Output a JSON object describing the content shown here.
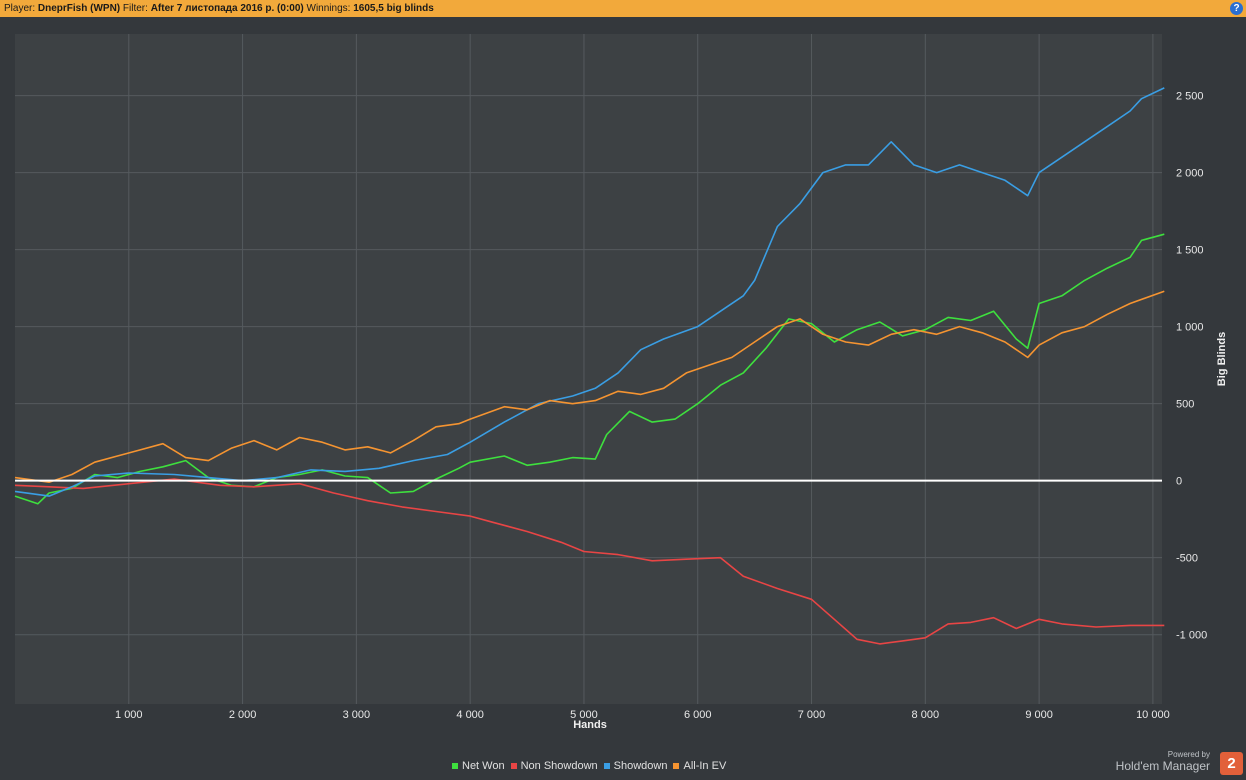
{
  "header": {
    "player_label": "Player:",
    "player_value": "DneprFish (WPN)",
    "filter_label": "Filter:",
    "filter_value": "After 7 листопада 2016 р. (0:00)",
    "winnings_label": "Winnings:",
    "winnings_value": "1605,5 big blinds",
    "help_icon": "question-mark-icon"
  },
  "branding": {
    "powered_by": "Powered by",
    "name": "Hold'em Manager",
    "badge": "2"
  },
  "chart_data": {
    "type": "line",
    "xlabel": "Hands",
    "ylabel": "Big Blinds",
    "xlim": [
      0,
      10080
    ],
    "ylim": [
      -1450,
      2900
    ],
    "grid": true,
    "legend_position": "bottom-center",
    "x_ticks": [
      1000,
      2000,
      3000,
      4000,
      5000,
      6000,
      7000,
      8000,
      9000,
      10000
    ],
    "x_tick_labels": [
      "1 000",
      "2 000",
      "3 000",
      "4 000",
      "5 000",
      "6 000",
      "7 000",
      "8 000",
      "9 000",
      "10 000"
    ],
    "y_ticks": [
      2500,
      2000,
      1500,
      1000,
      500,
      0,
      -500,
      -1000
    ],
    "y_tick_labels": [
      "2 500",
      "2 000",
      "1 500",
      "1 000",
      "500",
      "0",
      "-500",
      "-1 000"
    ],
    "zero_line_color": "#ffffff",
    "series": [
      {
        "name": "Net Won",
        "color": "#3ee03e",
        "x": [
          0,
          200,
          300,
          500,
          700,
          900,
          1100,
          1300,
          1500,
          1700,
          1900,
          2100,
          2300,
          2500,
          2700,
          2900,
          3100,
          3300,
          3500,
          3700,
          3900,
          4000,
          4300,
          4500,
          4700,
          4900,
          5100,
          5200,
          5400,
          5600,
          5800,
          6000,
          6200,
          6400,
          6600,
          6800,
          7000,
          7200,
          7400,
          7600,
          7800,
          8000,
          8200,
          8400,
          8600,
          8800,
          8900,
          9000,
          9200,
          9400,
          9600,
          9800,
          9900,
          10100
        ],
        "y": [
          -100,
          -150,
          -80,
          -50,
          40,
          20,
          60,
          90,
          130,
          20,
          -30,
          -40,
          20,
          40,
          70,
          30,
          20,
          -80,
          -70,
          10,
          80,
          120,
          160,
          100,
          120,
          150,
          140,
          300,
          450,
          380,
          400,
          500,
          620,
          700,
          860,
          1050,
          1020,
          900,
          980,
          1030,
          940,
          980,
          1060,
          1040,
          1100,
          920,
          860,
          1150,
          1200,
          1300,
          1380,
          1450,
          1560,
          1600
        ]
      },
      {
        "name": "Non Showdown",
        "color": "#e84545",
        "x": [
          0,
          300,
          600,
          1000,
          1400,
          1800,
          2100,
          2500,
          2800,
          3100,
          3400,
          3700,
          4000,
          4200,
          4500,
          4800,
          5000,
          5300,
          5600,
          5900,
          6200,
          6400,
          6700,
          7000,
          7200,
          7400,
          7600,
          7800,
          8000,
          8200,
          8400,
          8600,
          8800,
          9000,
          9200,
          9500,
          9800,
          10100
        ],
        "y": [
          -30,
          -40,
          -50,
          -20,
          10,
          -30,
          -40,
          -20,
          -80,
          -130,
          -170,
          -200,
          -230,
          -270,
          -330,
          -400,
          -460,
          -480,
          -520,
          -510,
          -500,
          -620,
          -700,
          -770,
          -900,
          -1030,
          -1060,
          -1040,
          -1020,
          -930,
          -920,
          -890,
          -960,
          -900,
          -930,
          -950,
          -940,
          -940
        ]
      },
      {
        "name": "Showdown",
        "color": "#3a9ee4",
        "x": [
          0,
          300,
          500,
          700,
          1000,
          1400,
          1700,
          2000,
          2300,
          2600,
          2900,
          3200,
          3500,
          3800,
          4000,
          4300,
          4600,
          4900,
          5100,
          5300,
          5500,
          5700,
          6000,
          6200,
          6400,
          6500,
          6700,
          6900,
          7100,
          7300,
          7500,
          7700,
          7900,
          8100,
          8300,
          8500,
          8700,
          8900,
          9000,
          9200,
          9400,
          9600,
          9800,
          9900,
          10100
        ],
        "y": [
          -70,
          -100,
          -40,
          30,
          50,
          40,
          20,
          0,
          20,
          70,
          60,
          80,
          130,
          170,
          250,
          380,
          500,
          550,
          600,
          700,
          850,
          920,
          1000,
          1100,
          1200,
          1300,
          1650,
          1800,
          2000,
          2050,
          2050,
          2200,
          2050,
          2000,
          2050,
          2000,
          1950,
          1850,
          2000,
          2100,
          2200,
          2300,
          2400,
          2480,
          2550
        ]
      },
      {
        "name": "All-In EV",
        "color": "#f59431",
        "x": [
          0,
          300,
          500,
          700,
          900,
          1100,
          1300,
          1500,
          1700,
          1900,
          2100,
          2300,
          2500,
          2700,
          2900,
          3100,
          3300,
          3500,
          3700,
          3900,
          4000,
          4300,
          4500,
          4700,
          4900,
          5100,
          5300,
          5500,
          5700,
          5900,
          6100,
          6300,
          6500,
          6700,
          6900,
          7100,
          7300,
          7500,
          7700,
          7900,
          8100,
          8300,
          8500,
          8700,
          8900,
          9000,
          9200,
          9400,
          9600,
          9800,
          10100
        ],
        "y": [
          20,
          -10,
          40,
          120,
          160,
          200,
          240,
          150,
          130,
          210,
          260,
          200,
          280,
          250,
          200,
          220,
          180,
          260,
          350,
          370,
          400,
          480,
          460,
          520,
          500,
          520,
          580,
          560,
          600,
          700,
          750,
          800,
          900,
          1000,
          1050,
          950,
          900,
          880,
          950,
          980,
          950,
          1000,
          960,
          900,
          800,
          880,
          960,
          1000,
          1080,
          1150,
          1230
        ]
      }
    ]
  }
}
